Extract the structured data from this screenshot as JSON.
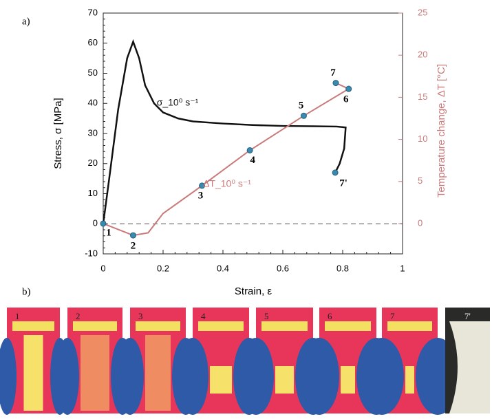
{
  "panel_labels": [
    "a)",
    "b)"
  ],
  "chart_data": {
    "type": "line",
    "xlabel": "Strain, ε",
    "ylabel": "Stress, σ [MPa]",
    "y2label": "Temperature change, ΔT [°C]",
    "xlim": [
      0,
      1
    ],
    "xticks": [
      0,
      0.2,
      0.4,
      0.6,
      0.8,
      1
    ],
    "ylim": [
      -10,
      70
    ],
    "yticks": [
      -10,
      0,
      10,
      20,
      30,
      40,
      50,
      60,
      70
    ],
    "y2lim": [
      -3.6,
      25
    ],
    "y2ticks": [
      0,
      5,
      10,
      15,
      20,
      25
    ],
    "series": [
      {
        "name": "σ_10⁰ s⁻¹",
        "color": "#111111",
        "axis": "y",
        "x": [
          0,
          0.02,
          0.05,
          0.08,
          0.1,
          0.12,
          0.14,
          0.17,
          0.2,
          0.25,
          0.3,
          0.4,
          0.5,
          0.6,
          0.7,
          0.78,
          0.81,
          0.805,
          0.79,
          0.775
        ],
        "values": [
          0,
          15,
          38,
          55,
          60.5,
          55,
          46,
          40,
          37,
          35,
          34,
          33.3,
          32.8,
          32.5,
          32.4,
          32.3,
          32,
          25,
          20,
          17
        ],
        "point_labels": [
          null,
          null,
          null,
          null,
          null,
          null,
          null,
          null,
          null,
          null,
          null,
          null,
          null,
          null,
          null,
          null,
          null,
          null,
          null,
          "7'"
        ]
      },
      {
        "name": "ΔT_10⁰ s⁻¹",
        "color": "#c97a7a",
        "axis": "y2",
        "x": [
          0,
          0.1,
          0.15,
          0.2,
          0.33,
          0.49,
          0.67,
          0.82,
          0.777
        ],
        "values": [
          0,
          -1.4,
          -1.1,
          1.2,
          4.5,
          8.7,
          12.8,
          16,
          16.7
        ],
        "point_labels": [
          "1",
          "2",
          null,
          null,
          "3",
          "4",
          "5",
          "6",
          "7"
        ]
      }
    ]
  },
  "frames": [
    "1",
    "2",
    "3",
    "4",
    "5",
    "6",
    "7",
    "7'"
  ]
}
